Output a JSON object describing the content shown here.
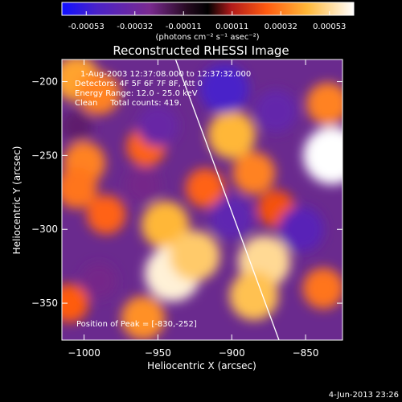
{
  "colorbar": {
    "ticks": [
      "-0.00053",
      "-0.00032",
      "-0.00011",
      "0.00011",
      "0.00032",
      "0.00053"
    ],
    "unit_label": "(photons cm⁻² s⁻¹ asec⁻²)"
  },
  "timestamp": "4-Jun-2013 23:26",
  "chart_data": {
    "type": "heatmap",
    "title": "Reconstructed RHESSI Image",
    "xlabel": "Heliocentric X (arcsec)",
    "ylabel": "Heliocentric Y (arcsec)",
    "xlim": [
      -1015,
      -825
    ],
    "ylim": [
      -375,
      -185
    ],
    "xticks": [
      -1000,
      -950,
      -900,
      -850
    ],
    "yticks": [
      -200,
      -250,
      -300,
      -350
    ],
    "xtick_labels": [
      "−1000",
      "−950",
      "−900",
      "−850"
    ],
    "ytick_labels": [
      "−200",
      "−250",
      "−300",
      "−350"
    ],
    "value_range": [
      -0.00053,
      0.00053
    ],
    "colormap": [
      "#0000ff",
      "#5a1fa8",
      "#7a2a90",
      "#000000",
      "#c0202a",
      "#ff6a1a",
      "#ffc94a",
      "#ffffff"
    ],
    "annotations": [
      "1-Aug-2003 12:37:08.000 to 12:37:32.000",
      "Detectors: 4F 5F 6F 7F 8F, Att 0",
      "Energy Range: 12.0 - 25.0 keV",
      "Clean     Total counts: 419."
    ],
    "peak_label": "Position of Peak = [-830,-252]",
    "peak": [
      -830,
      -252
    ],
    "limb_line": [
      [
        -938,
        -185
      ],
      [
        -868,
        -375
      ]
    ],
    "hotspots": [
      {
        "x": -1005,
        "y": -198,
        "value": 0.00035
      },
      {
        "x": -990,
        "y": -208,
        "value": 0.0003
      },
      {
        "x": -1000,
        "y": -255,
        "value": 0.0003
      },
      {
        "x": -1005,
        "y": -272,
        "value": 0.00028
      },
      {
        "x": -985,
        "y": -290,
        "value": 0.00025
      },
      {
        "x": -958,
        "y": -244,
        "value": 0.00025
      },
      {
        "x": -945,
        "y": -297,
        "value": 0.00038
      },
      {
        "x": -940,
        "y": -330,
        "value": 0.0005
      },
      {
        "x": -925,
        "y": -318,
        "value": 0.00042
      },
      {
        "x": -960,
        "y": -360,
        "value": 0.00032
      },
      {
        "x": -1010,
        "y": -350,
        "value": 0.00024
      },
      {
        "x": -918,
        "y": -272,
        "value": 0.00025
      },
      {
        "x": -900,
        "y": -236,
        "value": 0.00038
      },
      {
        "x": -885,
        "y": -262,
        "value": 0.0003
      },
      {
        "x": -878,
        "y": -322,
        "value": 0.00045
      },
      {
        "x": -885,
        "y": -345,
        "value": 0.0004
      },
      {
        "x": -870,
        "y": -286,
        "value": 0.00022
      },
      {
        "x": -832,
        "y": -250,
        "value": 0.00053
      },
      {
        "x": -835,
        "y": -215,
        "value": 0.0003
      },
      {
        "x": -838,
        "y": -340,
        "value": 0.00028
      },
      {
        "x": -990,
        "y": -335,
        "value": -0.0002
      },
      {
        "x": -950,
        "y": -230,
        "value": -0.00028
      },
      {
        "x": -905,
        "y": -205,
        "value": -0.0004
      },
      {
        "x": -900,
        "y": -292,
        "value": -0.00032
      },
      {
        "x": -870,
        "y": -220,
        "value": -0.0003
      },
      {
        "x": -853,
        "y": -300,
        "value": -0.00034
      },
      {
        "x": -960,
        "y": -270,
        "value": -0.0002
      },
      {
        "x": -1005,
        "y": -230,
        "value": -0.00015
      }
    ]
  }
}
